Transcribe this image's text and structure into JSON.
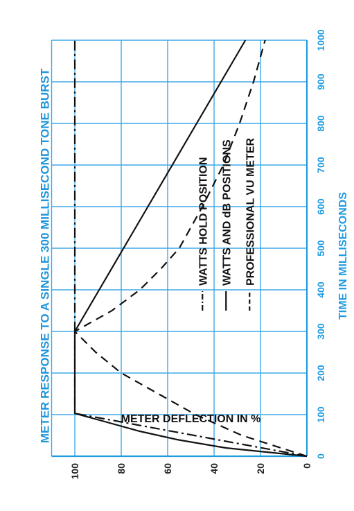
{
  "chart_data": {
    "type": "line",
    "orientation": "rotated-90-clockwise",
    "title": "METER RESPONSE TO A SINGLE 300 MILLISECOND TONE BURST",
    "xlabel": "TIME IN MILLISECONDS",
    "ylabel": "METER DEFLECTION IN %",
    "xlim": [
      0,
      1000
    ],
    "ylim": [
      0,
      110
    ],
    "x_ticks": [
      "0",
      "100",
      "200",
      "300",
      "400",
      "500",
      "600",
      "700",
      "800",
      "900",
      "1000"
    ],
    "y_ticks": [
      "0",
      "20",
      "40",
      "60",
      "80",
      "100"
    ],
    "grid": true,
    "legend_position": "inside-right",
    "colors": {
      "grid": "#3fa9e8",
      "axis": "#1f9be0",
      "title": "#1d96dc",
      "series": "#111111"
    },
    "series": [
      {
        "name": "WATTS HOLD POSITION",
        "style": "dash-dot",
        "points": [
          [
            0,
            0
          ],
          [
            103,
            100
          ],
          [
            1000,
            100
          ]
        ]
      },
      {
        "name": "WATTS AND dB POSITIONS",
        "style": "solid",
        "points": [
          [
            0,
            0
          ],
          [
            20,
            35
          ],
          [
            40,
            56
          ],
          [
            60,
            72
          ],
          [
            80,
            85
          ],
          [
            103,
            100
          ],
          [
            300,
            100
          ],
          [
            400,
            89.5
          ],
          [
            500,
            79
          ],
          [
            600,
            68.5
          ],
          [
            700,
            58
          ],
          [
            800,
            47.5
          ],
          [
            900,
            37
          ],
          [
            1000,
            26.5
          ]
        ]
      },
      {
        "name": "PROFESSIONAL VU METER",
        "style": "dashed",
        "points": [
          [
            0,
            0
          ],
          [
            50,
            28
          ],
          [
            100,
            48
          ],
          [
            150,
            64
          ],
          [
            200,
            80
          ],
          [
            250,
            91
          ],
          [
            300,
            100
          ],
          [
            350,
            84
          ],
          [
            400,
            72
          ],
          [
            450,
            63
          ],
          [
            500,
            55
          ],
          [
            600,
            45
          ],
          [
            700,
            36
          ],
          [
            800,
            29
          ],
          [
            900,
            23
          ],
          [
            1000,
            18
          ]
        ]
      }
    ]
  }
}
